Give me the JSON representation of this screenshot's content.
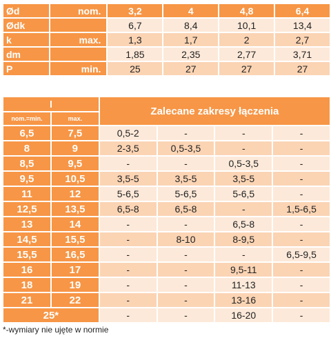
{
  "top_table": {
    "header": {
      "label": "Ød",
      "unit": "nom.",
      "values": [
        "3,2",
        "4",
        "4,8",
        "6,4"
      ]
    },
    "rows": [
      {
        "label": "Ødk",
        "unit": "",
        "values": [
          "6,7",
          "8,4",
          "10,1",
          "13,4"
        ]
      },
      {
        "label": "k",
        "unit": "max.",
        "values": [
          "1,3",
          "1,7",
          "2",
          "2,7"
        ]
      },
      {
        "label": "dm",
        "unit": "",
        "values": [
          "1,85",
          "2,35",
          "2,77",
          "3,71"
        ]
      },
      {
        "label": "P",
        "unit": "min.",
        "values": [
          "25",
          "27",
          "27",
          "27"
        ]
      }
    ]
  },
  "bottom_table": {
    "l_header": "l",
    "col_nom": "nom.=min.",
    "col_max": "max.",
    "title": "Zalecane zakresy łączenia",
    "rows": [
      {
        "nom": "6,5",
        "max": "7,5",
        "values": [
          "0,5-2",
          "-",
          "-",
          "-"
        ]
      },
      {
        "nom": "8",
        "max": "9",
        "values": [
          "2-3,5",
          "0,5-3,5",
          "-",
          "-"
        ]
      },
      {
        "nom": "8,5",
        "max": "9,5",
        "values": [
          "-",
          "-",
          "0,5-3,5",
          "-"
        ]
      },
      {
        "nom": "9,5",
        "max": "10,5",
        "values": [
          "3,5-5",
          "3,5-5",
          "3,5-5",
          "-"
        ]
      },
      {
        "nom": "11",
        "max": "12",
        "values": [
          "5-6,5",
          "5-6,5",
          "5-6,5",
          "-"
        ]
      },
      {
        "nom": "12,5",
        "max": "13,5",
        "values": [
          "6,5-8",
          "6,5-8",
          "-",
          "1,5-6,5"
        ]
      },
      {
        "nom": "13",
        "max": "14",
        "values": [
          "-",
          "-",
          "6,5-8",
          "-"
        ]
      },
      {
        "nom": "14,5",
        "max": "15,5",
        "values": [
          "-",
          "8-10",
          "8-9,5",
          "-"
        ]
      },
      {
        "nom": "15,5",
        "max": "16,5",
        "values": [
          "-",
          "-",
          "-",
          "6,5-9,5"
        ]
      },
      {
        "nom": "16",
        "max": "17",
        "values": [
          "-",
          "-",
          "9,5-11",
          "-"
        ]
      },
      {
        "nom": "18",
        "max": "19",
        "values": [
          "-",
          "-",
          "11-13",
          "-"
        ]
      },
      {
        "nom": "21",
        "max": "22",
        "values": [
          "-",
          "-",
          "13-16",
          "-"
        ]
      }
    ],
    "last_row": {
      "label": "25*",
      "values": [
        "-",
        "-",
        "16-20",
        "-"
      ]
    }
  },
  "footnote": "*-wymiary nie ujęte w normie",
  "colors": {
    "header_orange": "#f79646",
    "row_light": "#fde9d9",
    "row_peach": "#fbd4b4"
  }
}
